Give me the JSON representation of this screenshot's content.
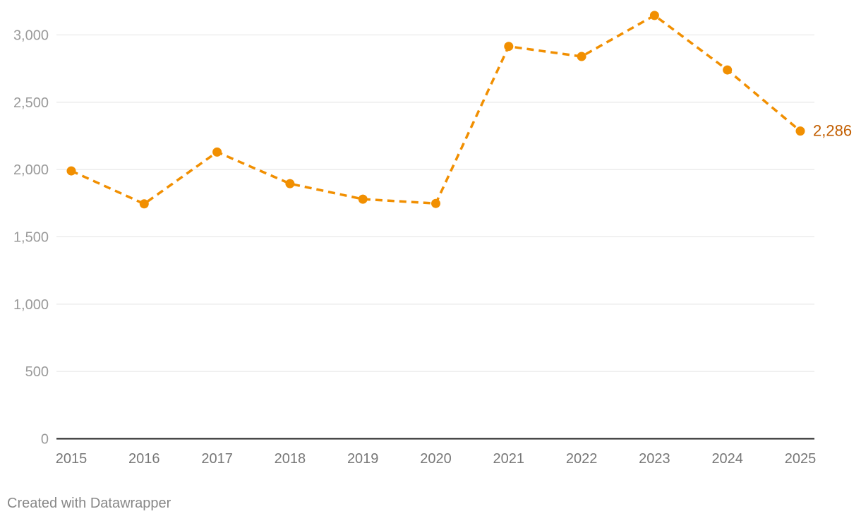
{
  "chart_data": {
    "type": "line",
    "title": "",
    "xlabel": "",
    "ylabel": "",
    "categories": [
      "2015",
      "2016",
      "2017",
      "2018",
      "2019",
      "2020",
      "2021",
      "2022",
      "2023",
      "2024",
      "2025"
    ],
    "series": [
      {
        "values": [
          1990,
          1745,
          2130,
          1895,
          1780,
          1748,
          2915,
          2840,
          3145,
          2740,
          2286
        ],
        "color": "#f18f01",
        "line_style": "dashed",
        "markers": true
      }
    ],
    "ylim": [
      0,
      3000
    ],
    "yticks": [
      0,
      500,
      1000,
      1500,
      2000,
      2500,
      3000
    ],
    "ytick_labels": [
      "0",
      "500",
      "1,000",
      "1,500",
      "2,000",
      "2,500",
      "3,000"
    ],
    "end_label": "2,286",
    "end_label_color": "#c25e00",
    "grid": true,
    "legend": "none"
  },
  "footer": {
    "credit": "Created with Datawrapper"
  }
}
